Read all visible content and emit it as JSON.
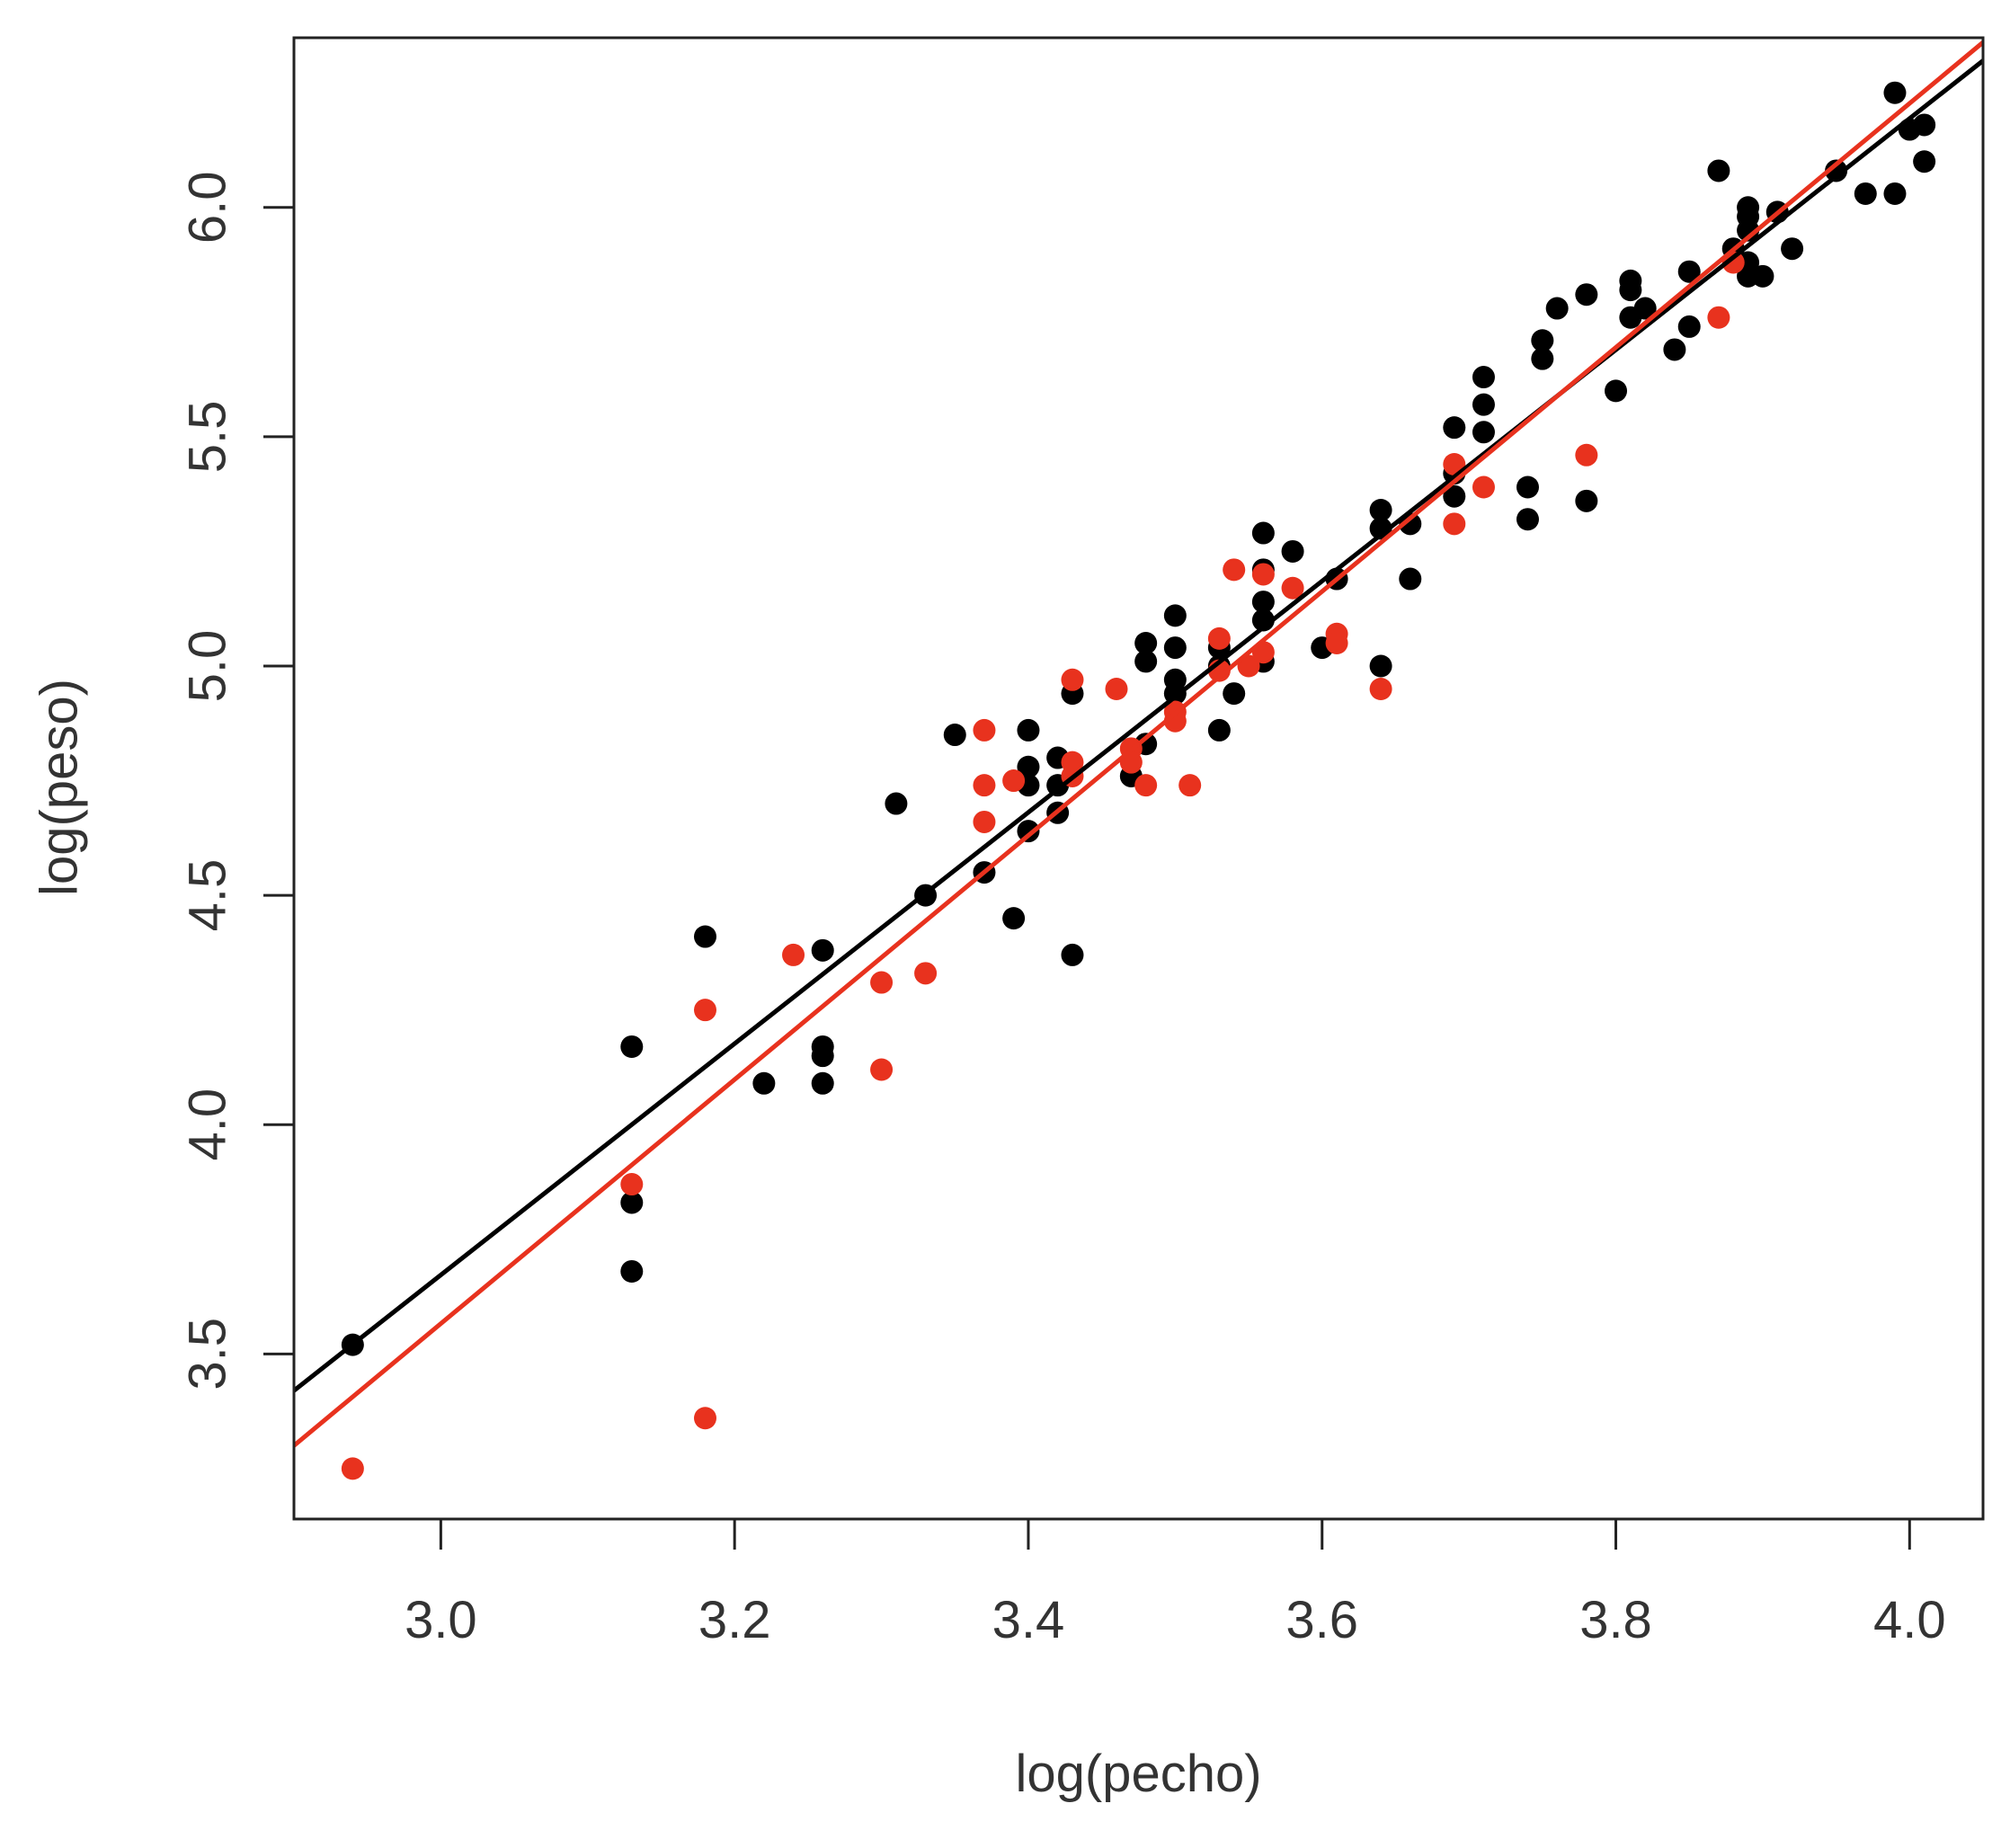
{
  "chart_data": {
    "type": "scatter",
    "title": "",
    "xlabel": "log(pecho)",
    "ylabel": "log(peso)",
    "xlim": [
      2.9,
      4.05
    ],
    "ylim": [
      3.14,
      6.37
    ],
    "x_ticks": [
      3.0,
      3.2,
      3.4,
      3.6,
      3.8,
      4.0
    ],
    "x_tick_labels": [
      "3.0",
      "3.2",
      "3.4",
      "3.6",
      "3.8",
      "4.0"
    ],
    "y_ticks": [
      3.5,
      4.0,
      4.5,
      5.0,
      5.5,
      6.0
    ],
    "y_tick_labels": [
      "3.5",
      "4.0",
      "4.5",
      "5.0",
      "5.5",
      "6.0"
    ],
    "grid": false,
    "legend": "none",
    "series": [
      {
        "color": "#000000",
        "points": [
          [
            2.94,
            3.52
          ],
          [
            3.13,
            4.17
          ],
          [
            3.13,
            3.83
          ],
          [
            3.13,
            3.68
          ],
          [
            3.18,
            4.41
          ],
          [
            3.22,
            4.09
          ],
          [
            3.26,
            4.38
          ],
          [
            3.26,
            4.17
          ],
          [
            3.26,
            4.15
          ],
          [
            3.26,
            4.09
          ],
          [
            3.31,
            4.7
          ],
          [
            3.33,
            4.5
          ],
          [
            3.35,
            4.85
          ],
          [
            3.37,
            4.55
          ],
          [
            3.39,
            4.45
          ],
          [
            3.4,
            4.86
          ],
          [
            3.4,
            4.78
          ],
          [
            3.4,
            4.74
          ],
          [
            3.4,
            4.64
          ],
          [
            3.42,
            4.8
          ],
          [
            3.42,
            4.74
          ],
          [
            3.42,
            4.68
          ],
          [
            3.43,
            4.94
          ],
          [
            3.43,
            4.37
          ],
          [
            3.47,
            4.76
          ],
          [
            3.48,
            5.05
          ],
          [
            3.48,
            5.01
          ],
          [
            3.48,
            4.83
          ],
          [
            3.5,
            5.11
          ],
          [
            3.5,
            5.04
          ],
          [
            3.5,
            4.97
          ],
          [
            3.5,
            4.94
          ],
          [
            3.53,
            5.04
          ],
          [
            3.53,
            5.0
          ],
          [
            3.53,
            4.86
          ],
          [
            3.54,
            4.94
          ],
          [
            3.56,
            5.29
          ],
          [
            3.56,
            5.21
          ],
          [
            3.56,
            5.14
          ],
          [
            3.56,
            5.1
          ],
          [
            3.56,
            5.01
          ],
          [
            3.58,
            5.25
          ],
          [
            3.6,
            5.04
          ],
          [
            3.61,
            5.19
          ],
          [
            3.64,
            5.34
          ],
          [
            3.64,
            5.3
          ],
          [
            3.64,
            5.0
          ],
          [
            3.66,
            5.31
          ],
          [
            3.66,
            5.19
          ],
          [
            3.69,
            5.52
          ],
          [
            3.69,
            5.42
          ],
          [
            3.69,
            5.37
          ],
          [
            3.71,
            5.63
          ],
          [
            3.71,
            5.57
          ],
          [
            3.71,
            5.51
          ],
          [
            3.74,
            5.39
          ],
          [
            3.74,
            5.32
          ],
          [
            3.75,
            5.71
          ],
          [
            3.75,
            5.67
          ],
          [
            3.76,
            5.78
          ],
          [
            3.78,
            5.81
          ],
          [
            3.78,
            5.36
          ],
          [
            3.8,
            5.6
          ],
          [
            3.81,
            5.84
          ],
          [
            3.81,
            5.82
          ],
          [
            3.81,
            5.76
          ],
          [
            3.82,
            5.78
          ],
          [
            3.84,
            5.69
          ],
          [
            3.85,
            5.86
          ],
          [
            3.85,
            5.74
          ],
          [
            3.87,
            6.08
          ],
          [
            3.88,
            5.91
          ],
          [
            3.89,
            6.0
          ],
          [
            3.89,
            5.98
          ],
          [
            3.89,
            5.95
          ],
          [
            3.89,
            5.88
          ],
          [
            3.89,
            5.85
          ],
          [
            3.9,
            5.85
          ],
          [
            3.91,
            5.99
          ],
          [
            3.92,
            5.91
          ],
          [
            3.95,
            6.08
          ],
          [
            3.97,
            6.03
          ],
          [
            3.99,
            6.25
          ],
          [
            3.99,
            6.03
          ],
          [
            4.0,
            6.17
          ],
          [
            4.01,
            6.18
          ],
          [
            4.01,
            6.1
          ]
        ],
        "fit": [
          [
            2.9,
            3.42
          ],
          [
            4.05,
            6.32
          ]
        ]
      },
      {
        "color": "#e8321e",
        "points": [
          [
            2.94,
            3.25
          ],
          [
            3.13,
            3.87
          ],
          [
            3.18,
            4.25
          ],
          [
            3.18,
            3.36
          ],
          [
            3.24,
            4.37
          ],
          [
            3.3,
            4.31
          ],
          [
            3.3,
            4.12
          ],
          [
            3.33,
            4.33
          ],
          [
            3.37,
            4.86
          ],
          [
            3.37,
            4.74
          ],
          [
            3.37,
            4.66
          ],
          [
            3.39,
            4.75
          ],
          [
            3.43,
            4.97
          ],
          [
            3.43,
            4.79
          ],
          [
            3.43,
            4.76
          ],
          [
            3.46,
            4.95
          ],
          [
            3.47,
            4.82
          ],
          [
            3.47,
            4.79
          ],
          [
            3.48,
            4.74
          ],
          [
            3.5,
            4.9
          ],
          [
            3.5,
            4.88
          ],
          [
            3.51,
            4.74
          ],
          [
            3.53,
            5.06
          ],
          [
            3.53,
            4.99
          ],
          [
            3.54,
            5.21
          ],
          [
            3.55,
            5.0
          ],
          [
            3.56,
            5.2
          ],
          [
            3.56,
            5.03
          ],
          [
            3.58,
            5.17
          ],
          [
            3.61,
            5.07
          ],
          [
            3.61,
            5.05
          ],
          [
            3.64,
            4.95
          ],
          [
            3.69,
            5.44
          ],
          [
            3.69,
            5.31
          ],
          [
            3.71,
            5.39
          ],
          [
            3.78,
            5.46
          ],
          [
            3.87,
            5.76
          ],
          [
            3.88,
            5.88
          ]
        ],
        "fit": [
          [
            2.9,
            3.3
          ],
          [
            4.05,
            6.36
          ]
        ]
      }
    ]
  }
}
